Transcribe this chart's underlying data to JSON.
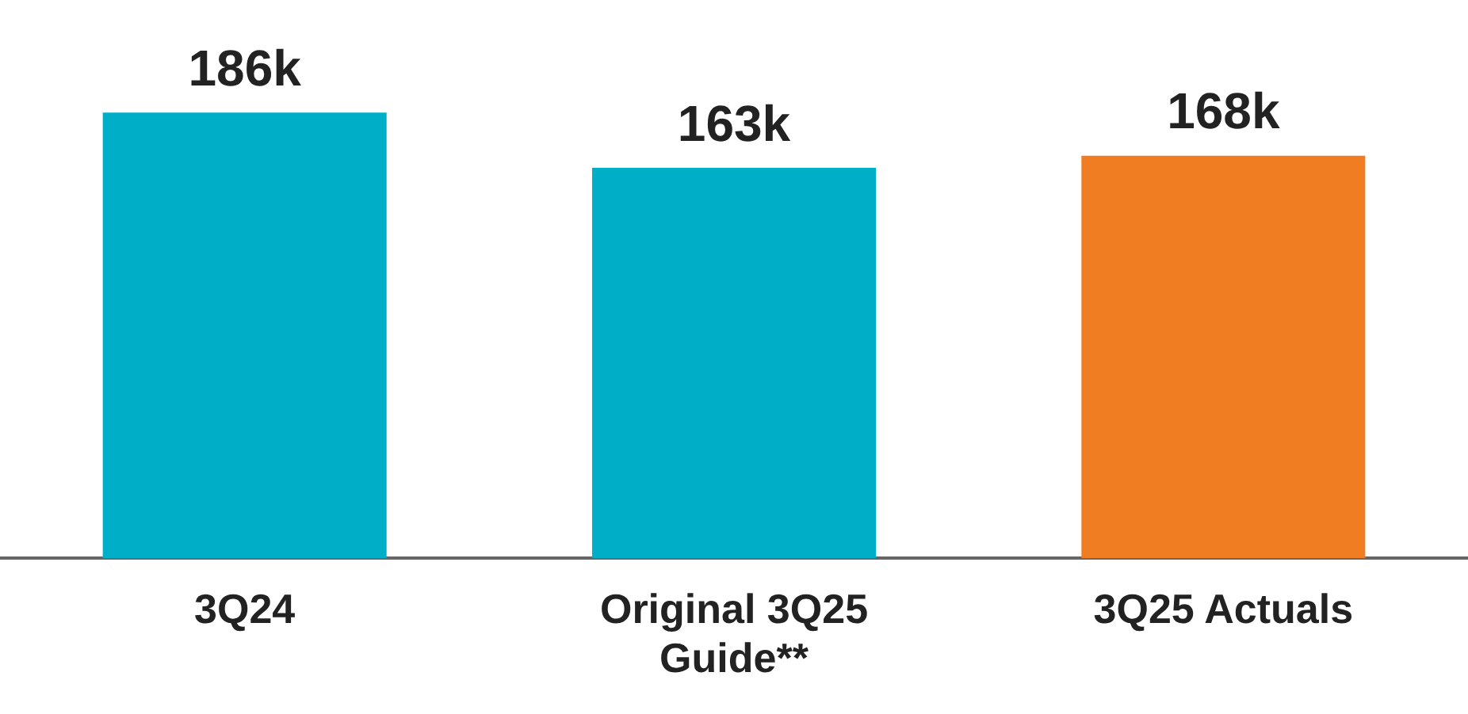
{
  "chart_data": {
    "type": "bar",
    "categories": [
      "3Q24",
      "Original 3Q25 Guide**",
      "3Q25 Actuals"
    ],
    "values": [
      186,
      163,
      168
    ],
    "colors": [
      "#00afc7",
      "#00afc7",
      "#f07d21"
    ],
    "value_labels": [
      "186k",
      "163k",
      "168k"
    ],
    "grid": false,
    "legend": false,
    "tick_labels": "x"
  }
}
